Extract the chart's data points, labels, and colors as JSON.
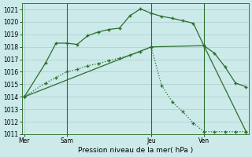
{
  "bg_color": "#cceaea",
  "grid_color": "#aacccc",
  "line_color": "#2a6e2a",
  "title": "Pression niveau de la mer( hPa )",
  "ylim": [
    1011,
    1021.5
  ],
  "yticks": [
    1011,
    1012,
    1013,
    1014,
    1015,
    1016,
    1017,
    1018,
    1019,
    1020,
    1021
  ],
  "xtick_labels": [
    "Mer",
    "Sam",
    "Jeu",
    "Ven"
  ],
  "xtick_positions": [
    0,
    8,
    24,
    34
  ],
  "vlines": [
    8,
    24,
    34
  ],
  "xmax": 42,
  "line1_x": [
    0,
    4,
    6,
    8,
    10,
    12,
    14,
    16,
    18,
    20,
    22,
    24,
    26,
    28,
    30,
    32,
    34,
    36,
    38,
    40,
    42
  ],
  "line1_y": [
    1014.0,
    1016.7,
    1018.3,
    1018.3,
    1018.2,
    1018.9,
    1019.2,
    1019.4,
    1019.5,
    1020.5,
    1021.05,
    1020.7,
    1020.45,
    1020.3,
    1020.1,
    1019.9,
    1018.1,
    1017.5,
    1016.4,
    1015.1,
    1014.8
  ],
  "line2_x": [
    0,
    24,
    34,
    42
  ],
  "line2_y": [
    1014.0,
    1018.0,
    1018.1,
    1011.2
  ],
  "line3_x": [
    0,
    4,
    6,
    8,
    10,
    12,
    14,
    16,
    18,
    20,
    22,
    24,
    26,
    28,
    30,
    32,
    34,
    36,
    38,
    40,
    42
  ],
  "line3_y": [
    1014.0,
    1015.1,
    1015.55,
    1016.0,
    1016.2,
    1016.5,
    1016.65,
    1016.9,
    1017.1,
    1017.35,
    1017.6,
    1018.0,
    1014.9,
    1013.6,
    1012.8,
    1011.9,
    1011.2,
    1011.2,
    1011.2,
    1011.2,
    1011.2
  ]
}
